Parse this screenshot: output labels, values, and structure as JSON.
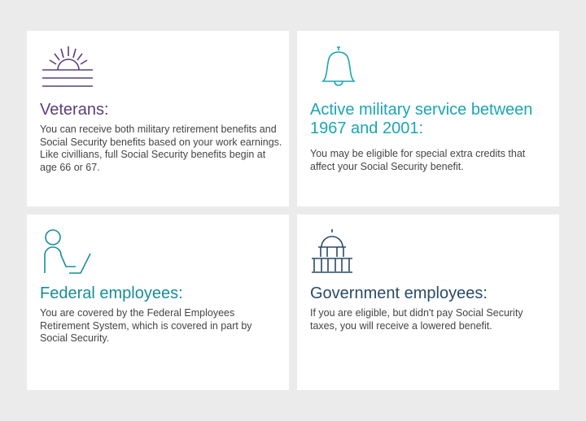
{
  "colors": {
    "veterans": "#5a3d7d",
    "active": "#1ba5b5",
    "federal": "#178d99",
    "government": "#2a4a66",
    "body_text": "#444444",
    "background": "#ebebeb"
  },
  "cards": [
    {
      "icon": "sunrise-icon",
      "title": "Veterans:",
      "body": "You can receive both military retirement benefits and Social Security benefits based on your work earnings. Like civillians, full Social Security benefits begin at age 66 or 67."
    },
    {
      "icon": "bell-icon",
      "title": "Active military service between 1967 and 2001:",
      "body": "You may be eligible for special extra credits that affect your Social Security benefit."
    },
    {
      "icon": "person-at-laptop-icon",
      "title": "Federal employees:",
      "body": "You are covered by the Federal Employees Retirement System, which is covered in part by Social Security."
    },
    {
      "icon": "capitol-building-icon",
      "title": "Government employees:",
      "body": "If you are eligible, but didn't pay Social Security taxes, you will receive a lowered benefit."
    }
  ]
}
